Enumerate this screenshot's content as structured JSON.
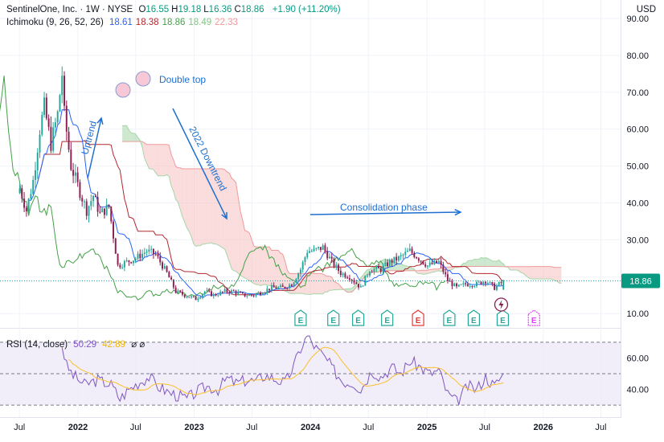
{
  "header": {
    "title": "SentinelOne, Inc. · 1W · NYSE",
    "ohlc": [
      {
        "label": "O",
        "value": "16.55"
      },
      {
        "label": "H",
        "value": "19.18"
      },
      {
        "label": "L",
        "value": "16.36"
      },
      {
        "label": "C",
        "value": "18.86"
      }
    ],
    "change": "+1.90 (+11.20%)",
    "currency": "USD"
  },
  "indicator": {
    "label": "Ichimoku (9, 26, 52, 26)",
    "values": [
      {
        "value": "18.61",
        "color": "#2962ff"
      },
      {
        "value": "18.38",
        "color": "#b2282e"
      },
      {
        "value": "18.86",
        "color": "#43a047"
      },
      {
        "value": "18.49",
        "color": "#81c784"
      },
      {
        "value": "22.33",
        "color": "#ef9a9a"
      }
    ]
  },
  "rsi": {
    "label": "RSI (14, close)",
    "value": "50.29",
    "ma_value": "42.89",
    "extra": "⌀ ⌀"
  },
  "colors": {
    "up": "#26a69a",
    "down": "#8b1e52",
    "tenkan": "#2962ff",
    "kijun": "#b2282e",
    "chikou": "#43a047",
    "cloud_bear": "#f8bfc0",
    "cloud_bull": "#a5d6a7",
    "rsi_line": "#7e57c2",
    "rsi_ma": "#fbc02d",
    "annotation": "#1e6fd0",
    "earnings": "#26a69a",
    "earnings_neg": "#e53935",
    "earnings_future": "#e040fb"
  },
  "price_axis": {
    "ticks": [
      "90.00",
      "80.00",
      "70.00",
      "60.00",
      "50.00",
      "40.00",
      "30.00",
      "20.00",
      "10.00"
    ],
    "last_price": "18.86"
  },
  "rsi_axis": {
    "ticks": [
      "60.00",
      "40.00"
    ]
  },
  "time_axis": {
    "ticks": [
      "Jul",
      "2022",
      "Jul",
      "2023",
      "Jul",
      "2024",
      "Jul",
      "2025",
      "Jul",
      "2026",
      "Jul"
    ]
  },
  "annotations": {
    "double_top": "Double top",
    "uptrend": "Uptrend",
    "downtrend": "2022 Downtrend",
    "consolidation": "Consolidation phase"
  },
  "earnings": [
    {
      "label": "E",
      "kind": "reported",
      "date": "2023-12-01"
    },
    {
      "label": "E",
      "kind": "reported",
      "date": "2024-03-13"
    },
    {
      "label": "E",
      "kind": "reported",
      "date": "2024-05-30"
    },
    {
      "label": "E",
      "kind": "reported",
      "date": "2024-08-29"
    },
    {
      "label": "E",
      "kind": "negative",
      "date": "2024-12-04"
    },
    {
      "label": "E",
      "kind": "reported",
      "date": "2025-03-12"
    },
    {
      "label": "E",
      "kind": "reported",
      "date": "2025-05-28"
    },
    {
      "label": "E",
      "kind": "reported",
      "date": "2025-08-27"
    },
    {
      "label": "E",
      "kind": "future",
      "date": "2025-12-03"
    }
  ],
  "chart_data": {
    "type": "candlestick",
    "title": "SentinelOne, Inc. · 1W · NYSE",
    "ylabel": "USD",
    "ylim": [
      7,
      95
    ],
    "price_path": [
      [
        "2021-07-02",
        44
      ],
      [
        "2021-07-23",
        38
      ],
      [
        "2021-08-13",
        46
      ],
      [
        "2021-09-03",
        60
      ],
      [
        "2021-09-17",
        66
      ],
      [
        "2021-10-08",
        56
      ],
      [
        "2021-10-29",
        64
      ],
      [
        "2021-11-12",
        75
      ],
      [
        "2021-11-19",
        64
      ],
      [
        "2021-12-10",
        50
      ],
      [
        "2022-01-07",
        43
      ],
      [
        "2022-01-28",
        38
      ],
      [
        "2022-02-18",
        42
      ],
      [
        "2022-03-11",
        37
      ],
      [
        "2022-04-08",
        39
      ],
      [
        "2022-05-06",
        23
      ],
      [
        "2022-06-03",
        24
      ],
      [
        "2022-07-01",
        25
      ],
      [
        "2022-08-05",
        27
      ],
      [
        "2022-09-02",
        26
      ],
      [
        "2022-10-07",
        21
      ],
      [
        "2022-11-04",
        16
      ],
      [
        "2022-12-02",
        15
      ],
      [
        "2023-01-06",
        14
      ],
      [
        "2023-02-03",
        16
      ],
      [
        "2023-03-03",
        15
      ],
      [
        "2023-04-07",
        16
      ],
      [
        "2023-05-05",
        16
      ],
      [
        "2023-06-02",
        15
      ],
      [
        "2023-07-07",
        15
      ],
      [
        "2023-08-04",
        16
      ],
      [
        "2023-09-01",
        17
      ],
      [
        "2023-10-06",
        17
      ],
      [
        "2023-11-03",
        18
      ],
      [
        "2023-12-01",
        22
      ],
      [
        "2023-12-22",
        27
      ],
      [
        "2024-01-12",
        27
      ],
      [
        "2024-02-09",
        28
      ],
      [
        "2024-03-08",
        24
      ],
      [
        "2024-04-05",
        21
      ],
      [
        "2024-05-03",
        20
      ],
      [
        "2024-06-07",
        17
      ],
      [
        "2024-07-05",
        22
      ],
      [
        "2024-08-09",
        22
      ],
      [
        "2024-09-06",
        24
      ],
      [
        "2024-10-04",
        25
      ],
      [
        "2024-11-08",
        27
      ],
      [
        "2024-12-06",
        25
      ],
      [
        "2025-01-03",
        23
      ],
      [
        "2025-02-07",
        24
      ],
      [
        "2025-03-07",
        19
      ],
      [
        "2025-04-04",
        17
      ],
      [
        "2025-05-02",
        18
      ],
      [
        "2025-06-06",
        18
      ],
      [
        "2025-07-04",
        19
      ],
      [
        "2025-08-01",
        17
      ],
      [
        "2025-08-29",
        18.86
      ]
    ],
    "series": [
      {
        "name": "Ichimoku",
        "values": [
          18.61,
          18.38,
          18.86,
          18.49,
          22.33
        ]
      },
      {
        "name": "RSI (14, close)",
        "values": [
          50.29,
          42.89
        ]
      }
    ],
    "rsi_path": [
      [
        "2021-11-12",
        68
      ],
      [
        "2021-11-26",
        55
      ],
      [
        "2021-12-17",
        49
      ],
      [
        "2022-01-21",
        43
      ],
      [
        "2022-03-04",
        46
      ],
      [
        "2022-04-15",
        43
      ],
      [
        "2022-05-13",
        34
      ],
      [
        "2022-06-10",
        40
      ],
      [
        "2022-07-08",
        44
      ],
      [
        "2022-08-12",
        48
      ],
      [
        "2022-09-09",
        42
      ],
      [
        "2022-10-14",
        38
      ],
      [
        "2022-11-11",
        36
      ],
      [
        "2022-12-09",
        34
      ],
      [
        "2023-01-13",
        39
      ],
      [
        "2023-02-10",
        42
      ],
      [
        "2023-03-17",
        40
      ],
      [
        "2023-04-14",
        47
      ],
      [
        "2023-05-12",
        44
      ],
      [
        "2023-06-16",
        46
      ],
      [
        "2023-07-14",
        45
      ],
      [
        "2023-08-11",
        49
      ],
      [
        "2023-09-08",
        47
      ],
      [
        "2023-10-13",
        44
      ],
      [
        "2023-11-10",
        55
      ],
      [
        "2023-12-01",
        66
      ],
      [
        "2023-12-22",
        74
      ],
      [
        "2024-01-19",
        66
      ],
      [
        "2024-02-16",
        60
      ],
      [
        "2024-03-15",
        52
      ],
      [
        "2024-04-12",
        45
      ],
      [
        "2024-05-17",
        44
      ],
      [
        "2024-06-07",
        40
      ],
      [
        "2024-07-12",
        52
      ],
      [
        "2024-08-09",
        48
      ],
      [
        "2024-09-13",
        54
      ],
      [
        "2024-10-11",
        50
      ],
      [
        "2024-11-08",
        58
      ],
      [
        "2024-12-06",
        55
      ],
      [
        "2025-01-10",
        50
      ],
      [
        "2025-02-07",
        52
      ],
      [
        "2025-03-07",
        37
      ],
      [
        "2025-04-04",
        32
      ],
      [
        "2025-05-09",
        42
      ],
      [
        "2025-06-06",
        40
      ],
      [
        "2025-07-04",
        48
      ],
      [
        "2025-08-01",
        42
      ],
      [
        "2025-08-29",
        50.29
      ]
    ],
    "rsi_ylim": [
      27,
      74
    ],
    "rsi_bands": [
      70,
      50,
      30
    ]
  }
}
